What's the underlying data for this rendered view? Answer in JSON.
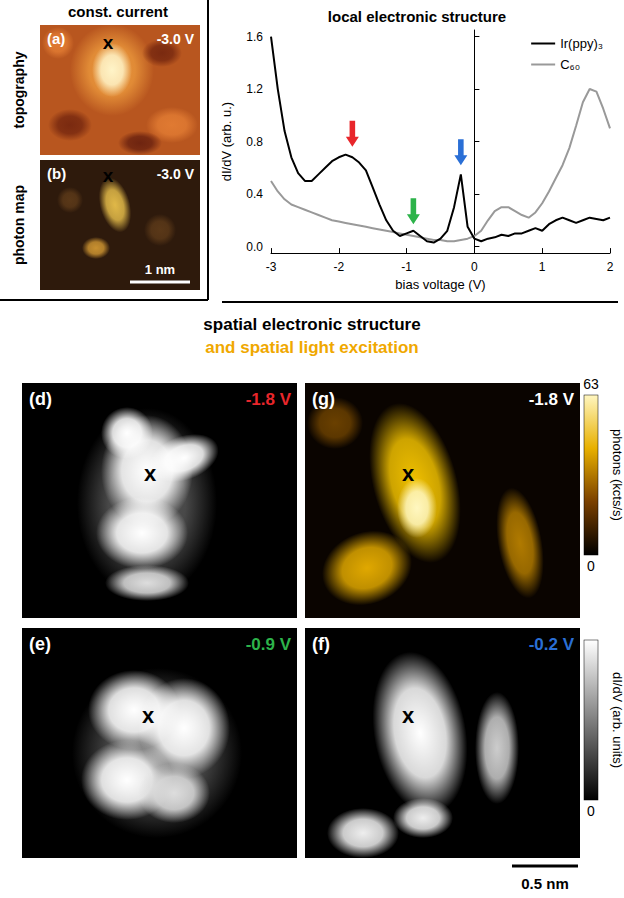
{
  "header": "const. current",
  "panels": [
    {
      "letter": "(a)",
      "bias": "-3.0 V",
      "color": "#ffffff",
      "side_label": "topography",
      "marker": "x"
    },
    {
      "letter": "(b)",
      "bias": "-3.0 V",
      "color": "#ffffff",
      "side_label": "photon map",
      "marker": "x",
      "scale_bar": "1 nm"
    },
    {
      "letter": "(d)",
      "bias": "-1.8 V",
      "color": "#e8262b",
      "marker": "x"
    },
    {
      "letter": "(g)",
      "bias": "-1.8 V",
      "color": "#ffffff",
      "marker": "x"
    },
    {
      "letter": "(e)",
      "bias": "-0.9 V",
      "color": "#2db34a",
      "marker": "x"
    },
    {
      "letter": "(f)",
      "bias": "-0.2 V",
      "color": "#2a6fd6",
      "marker": "x",
      "scale_bar": "0.5 nm"
    }
  ],
  "section_title": [
    {
      "text": "spatial electronic structure",
      "color": "#000000"
    },
    {
      "text": "and spatial light excitation",
      "color": "#f0a800"
    }
  ],
  "colorbars": [
    {
      "label": "photons (kcts/s)",
      "range": [
        0,
        63
      ],
      "ticks": [
        0,
        63
      ],
      "colors": [
        "#000000",
        "#7a4000",
        "#e8b000",
        "#fff6c0"
      ]
    },
    {
      "label": "dI/dV (arb. units)",
      "ticks": [
        0
      ],
      "colors": [
        "#000000",
        "#ffffff"
      ]
    }
  ],
  "chart_data": {
    "type": "line",
    "title": "local electronic structure",
    "x_label": "bias voltage (V)",
    "y_label": "dI/dV (arb. u.)",
    "x": [
      -3,
      -2.9,
      -2.8,
      -2.7,
      -2.6,
      -2.5,
      -2.4,
      -2.3,
      -2.2,
      -2.1,
      -2,
      -1.9,
      -1.8,
      -1.7,
      -1.6,
      -1.5,
      -1.4,
      -1.3,
      -1.2,
      -1.1,
      -1,
      -0.9,
      -0.8,
      -0.7,
      -0.6,
      -0.5,
      -0.4,
      -0.3,
      -0.2,
      -0.1,
      0,
      0.1,
      0.2,
      0.3,
      0.4,
      0.5,
      0.6,
      0.7,
      0.8,
      0.9,
      1,
      1.1,
      1.2,
      1.3,
      1.4,
      1.5,
      1.6,
      1.7,
      1.8,
      1.9,
      2
    ],
    "series": [
      {
        "name": "Ir(ppy)₃",
        "color": "#000000",
        "values": [
          1.6,
          1.2,
          0.88,
          0.68,
          0.56,
          0.5,
          0.5,
          0.55,
          0.6,
          0.65,
          0.68,
          0.7,
          0.68,
          0.64,
          0.58,
          0.45,
          0.32,
          0.2,
          0.12,
          0.08,
          0.1,
          0.12,
          0.08,
          0.04,
          0.03,
          0.06,
          0.12,
          0.3,
          0.55,
          0.15,
          0.06,
          0.04,
          0.06,
          0.07,
          0.09,
          0.08,
          0.1,
          0.1,
          0.12,
          0.14,
          0.12,
          0.17,
          0.2,
          0.22,
          0.2,
          0.18,
          0.2,
          0.22,
          0.21,
          0.2,
          0.22
        ]
      },
      {
        "name": "C₆₀",
        "color": "#999999",
        "values": [
          0.5,
          0.42,
          0.36,
          0.32,
          0.3,
          0.28,
          0.26,
          0.24,
          0.22,
          0.2,
          0.19,
          0.18,
          0.17,
          0.16,
          0.15,
          0.14,
          0.13,
          0.12,
          0.11,
          0.1,
          0.09,
          0.08,
          0.07,
          0.06,
          0.05,
          0.05,
          0.04,
          0.04,
          0.05,
          0.06,
          0.08,
          0.12,
          0.2,
          0.27,
          0.3,
          0.3,
          0.27,
          0.24,
          0.22,
          0.26,
          0.33,
          0.42,
          0.52,
          0.62,
          0.75,
          0.92,
          1.1,
          1.2,
          1.18,
          1.05,
          0.9
        ]
      }
    ],
    "xlim": [
      -3,
      2
    ],
    "xticks": [
      -3,
      -2,
      -1,
      0,
      1,
      2
    ],
    "ylim": [
      -0.05,
      1.65
    ],
    "yticks": [
      {
        "value": 0,
        "label": "0.0"
      },
      {
        "value": 0.4,
        "label": "0.4"
      },
      {
        "value": 0.8,
        "label": "0.8"
      },
      {
        "value": 1.2,
        "label": "1.2"
      },
      {
        "value": 1.6,
        "label": "1.6"
      }
    ],
    "legend": "upper right",
    "grid": false,
    "annotations": [
      {
        "x": -1.8,
        "y": 0.76,
        "color": "#e8262b",
        "marker": "arrow"
      },
      {
        "x": -0.9,
        "y": 0.17,
        "color": "#2db34a",
        "marker": "arrow"
      },
      {
        "x": -0.2,
        "y": 0.62,
        "color": "#2a6fd6",
        "marker": "arrow"
      }
    ]
  }
}
